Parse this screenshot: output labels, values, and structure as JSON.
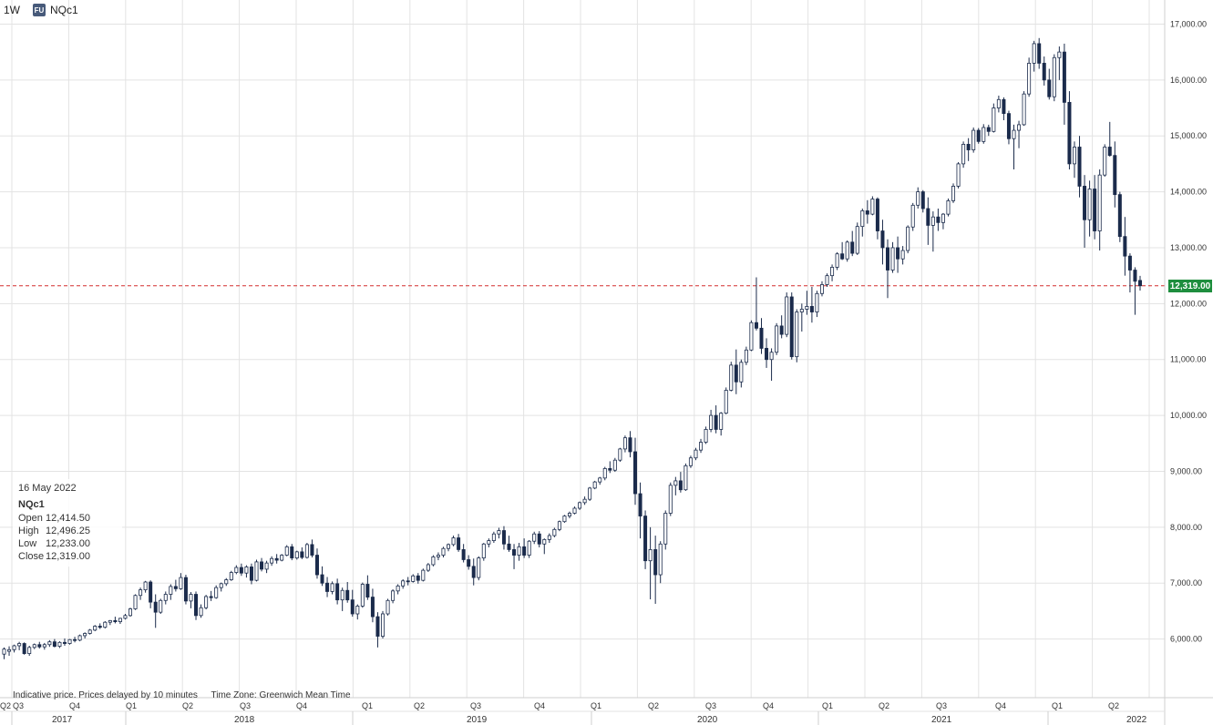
{
  "header": {
    "interval": "1W",
    "badge": "FU",
    "symbol": "NQc1"
  },
  "tooltip": {
    "date": "16 May 2022",
    "symbol": "NQc1",
    "open_label": "Open",
    "open": "12,414.50",
    "high_label": "High",
    "high": "12,496.25",
    "low_label": "Low",
    "low": "12,233.00",
    "close_label": "Close",
    "close": "12,319.00"
  },
  "footer": {
    "note": "Indicative price. Prices delayed by 10 minutes",
    "timezone": "Time Zone: Greenwich Mean Time"
  },
  "last_price_label": "12,319.00",
  "colors": {
    "up": "#ffffff",
    "down": "#1b2b4b",
    "wick": "#1b2b4b",
    "grid": "#e3e3e3",
    "last_line": "#d32f2f",
    "last_tag": "#1e8e3e"
  },
  "chart_data": {
    "type": "candlestick",
    "x_start": "2017-04-03",
    "interval": "1W",
    "last_price": 12319,
    "ylim": [
      5000,
      17300
    ],
    "y_ticks": [
      6000,
      7000,
      8000,
      9000,
      10000,
      11000,
      12000,
      13000,
      14000,
      15000,
      16000,
      17000
    ],
    "y_tick_labels": [
      "6,000.00",
      "7,000.00",
      "8,000.00",
      "9,000.00",
      "10,000.00",
      "11,000.00",
      "12,000.00",
      "13,000.00",
      "14,000.00",
      "15,000.00",
      "16,000.00",
      "17,000.00"
    ],
    "quarter_labels": [
      "Q2",
      "Q3",
      "Q4",
      "Q1",
      "Q2",
      "Q3",
      "Q4",
      "Q1",
      "Q2",
      "Q3",
      "Q4",
      "Q1",
      "Q2",
      "Q3",
      "Q4",
      "Q1",
      "Q2",
      "Q3",
      "Q4",
      "Q1",
      "Q2"
    ],
    "year_labels": [
      "2017",
      "2018",
      "2019",
      "2020",
      "2021",
      "2022"
    ],
    "candles": [
      [
        5730,
        5850,
        5640,
        5820
      ],
      [
        5780,
        5870,
        5700,
        5810
      ],
      [
        5810,
        5900,
        5760,
        5880
      ],
      [
        5880,
        5950,
        5800,
        5920
      ],
      [
        5920,
        5940,
        5720,
        5740
      ],
      [
        5740,
        5880,
        5700,
        5850
      ],
      [
        5850,
        5920,
        5820,
        5900
      ],
      [
        5900,
        5950,
        5830,
        5860
      ],
      [
        5860,
        5930,
        5810,
        5900
      ],
      [
        5900,
        5980,
        5860,
        5950
      ],
      [
        5950,
        6000,
        5850,
        5870
      ],
      [
        5870,
        5960,
        5840,
        5940
      ],
      [
        5940,
        6010,
        5880,
        5920
      ],
      [
        5920,
        6000,
        5900,
        5990
      ],
      [
        5990,
        6040,
        5940,
        5980
      ],
      [
        5980,
        6080,
        5960,
        6060
      ],
      [
        6060,
        6120,
        6010,
        6100
      ],
      [
        6100,
        6180,
        6080,
        6160
      ],
      [
        6160,
        6250,
        6140,
        6230
      ],
      [
        6230,
        6280,
        6180,
        6210
      ],
      [
        6210,
        6320,
        6190,
        6300
      ],
      [
        6300,
        6340,
        6250,
        6330
      ],
      [
        6330,
        6400,
        6280,
        6310
      ],
      [
        6310,
        6380,
        6270,
        6370
      ],
      [
        6370,
        6450,
        6350,
        6420
      ],
      [
        6420,
        6560,
        6400,
        6540
      ],
      [
        6540,
        6800,
        6520,
        6780
      ],
      [
        6780,
        6920,
        6700,
        6880
      ],
      [
        6880,
        7040,
        6830,
        7020
      ],
      [
        7020,
        7050,
        6550,
        6660
      ],
      [
        6660,
        6800,
        6200,
        6480
      ],
      [
        6480,
        6720,
        6450,
        6690
      ],
      [
        6690,
        6850,
        6620,
        6800
      ],
      [
        6800,
        6980,
        6700,
        6940
      ],
      [
        6940,
        7060,
        6850,
        6900
      ],
      [
        6900,
        7180,
        6880,
        7100
      ],
      [
        7100,
        7150,
        6620,
        6680
      ],
      [
        6680,
        6840,
        6550,
        6800
      ],
      [
        6800,
        6850,
        6340,
        6420
      ],
      [
        6420,
        6620,
        6380,
        6560
      ],
      [
        6560,
        6790,
        6530,
        6760
      ],
      [
        6760,
        6860,
        6680,
        6740
      ],
      [
        6740,
        6960,
        6720,
        6920
      ],
      [
        6920,
        7010,
        6850,
        6990
      ],
      [
        6990,
        7090,
        6950,
        7060
      ],
      [
        7060,
        7220,
        7040,
        7190
      ],
      [
        7190,
        7320,
        7160,
        7280
      ],
      [
        7280,
        7350,
        7130,
        7180
      ],
      [
        7180,
        7320,
        7100,
        7290
      ],
      [
        7290,
        7350,
        6980,
        7050
      ],
      [
        7050,
        7420,
        7030,
        7380
      ],
      [
        7380,
        7450,
        7210,
        7250
      ],
      [
        7250,
        7400,
        7180,
        7360
      ],
      [
        7360,
        7480,
        7310,
        7440
      ],
      [
        7440,
        7520,
        7350,
        7410
      ],
      [
        7410,
        7520,
        7390,
        7500
      ],
      [
        7500,
        7680,
        7480,
        7650
      ],
      [
        7650,
        7700,
        7410,
        7450
      ],
      [
        7450,
        7580,
        7420,
        7560
      ],
      [
        7560,
        7640,
        7430,
        7460
      ],
      [
        7460,
        7720,
        7440,
        7690
      ],
      [
        7690,
        7780,
        7460,
        7500
      ],
      [
        7500,
        7620,
        7080,
        7150
      ],
      [
        7150,
        7300,
        6950,
        7000
      ],
      [
        7000,
        7110,
        6750,
        6850
      ],
      [
        6850,
        7030,
        6800,
        6990
      ],
      [
        6990,
        7080,
        6620,
        6700
      ],
      [
        6700,
        6920,
        6500,
        6870
      ],
      [
        6870,
        7020,
        6650,
        6700
      ],
      [
        6700,
        6880,
        6400,
        6450
      ],
      [
        6450,
        6620,
        6350,
        6590
      ],
      [
        6590,
        7010,
        6560,
        6980
      ],
      [
        6980,
        7140,
        6700,
        6750
      ],
      [
        6750,
        6900,
        6300,
        6400
      ],
      [
        6400,
        6480,
        5850,
        6050
      ],
      [
        6050,
        6500,
        6010,
        6450
      ],
      [
        6450,
        6720,
        6420,
        6690
      ],
      [
        6690,
        6890,
        6640,
        6860
      ],
      [
        6860,
        6980,
        6800,
        6950
      ],
      [
        6950,
        7070,
        6900,
        7040
      ],
      [
        7040,
        7110,
        6960,
        7030
      ],
      [
        7030,
        7160,
        7010,
        7130
      ],
      [
        7130,
        7180,
        6990,
        7050
      ],
      [
        7050,
        7260,
        7030,
        7230
      ],
      [
        7230,
        7360,
        7200,
        7330
      ],
      [
        7330,
        7500,
        7300,
        7470
      ],
      [
        7470,
        7550,
        7410,
        7500
      ],
      [
        7500,
        7650,
        7460,
        7620
      ],
      [
        7620,
        7710,
        7570,
        7690
      ],
      [
        7690,
        7850,
        7660,
        7810
      ],
      [
        7810,
        7880,
        7560,
        7600
      ],
      [
        7600,
        7700,
        7370,
        7420
      ],
      [
        7420,
        7500,
        7240,
        7300
      ],
      [
        7300,
        7440,
        6960,
        7100
      ],
      [
        7100,
        7480,
        7050,
        7450
      ],
      [
        7450,
        7720,
        7400,
        7700
      ],
      [
        7700,
        7800,
        7640,
        7760
      ],
      [
        7760,
        7920,
        7720,
        7880
      ],
      [
        7880,
        7990,
        7800,
        7940
      ],
      [
        7940,
        8020,
        7600,
        7700
      ],
      [
        7700,
        7850,
        7560,
        7600
      ],
      [
        7600,
        7700,
        7250,
        7500
      ],
      [
        7500,
        7720,
        7400,
        7650
      ],
      [
        7650,
        7800,
        7450,
        7500
      ],
      [
        7500,
        7770,
        7450,
        7750
      ],
      [
        7750,
        7920,
        7700,
        7880
      ],
      [
        7880,
        7930,
        7640,
        7700
      ],
      [
        7700,
        7800,
        7520,
        7780
      ],
      [
        7780,
        7890,
        7720,
        7850
      ],
      [
        7850,
        7990,
        7820,
        7960
      ],
      [
        7960,
        8120,
        7930,
        8100
      ],
      [
        8100,
        8220,
        8080,
        8200
      ],
      [
        8200,
        8280,
        8160,
        8250
      ],
      [
        8250,
        8370,
        8230,
        8340
      ],
      [
        8340,
        8460,
        8310,
        8440
      ],
      [
        8440,
        8550,
        8400,
        8500
      ],
      [
        8500,
        8720,
        8470,
        8700
      ],
      [
        8700,
        8830,
        8680,
        8810
      ],
      [
        8810,
        8900,
        8760,
        8880
      ],
      [
        8880,
        9080,
        8840,
        9050
      ],
      [
        9050,
        9180,
        8970,
        9020
      ],
      [
        9020,
        9240,
        8990,
        9200
      ],
      [
        9200,
        9420,
        9170,
        9400
      ],
      [
        9400,
        9640,
        9340,
        9600
      ],
      [
        9600,
        9720,
        9250,
        9350
      ],
      [
        9350,
        9600,
        8400,
        8600
      ],
      [
        8600,
        8800,
        7800,
        8200
      ],
      [
        8200,
        8300,
        7250,
        7400
      ],
      [
        7400,
        8000,
        6710,
        7600
      ],
      [
        7600,
        7850,
        6630,
        7150
      ],
      [
        7150,
        7750,
        7000,
        7700
      ],
      [
        7700,
        8300,
        7600,
        8250
      ],
      [
        8250,
        8800,
        8200,
        8750
      ],
      [
        8750,
        8900,
        8570,
        8830
      ],
      [
        8830,
        8990,
        8620,
        8670
      ],
      [
        8670,
        9140,
        8650,
        9100
      ],
      [
        9100,
        9280,
        9060,
        9240
      ],
      [
        9240,
        9420,
        9200,
        9380
      ],
      [
        9380,
        9580,
        9330,
        9520
      ],
      [
        9520,
        9800,
        9490,
        9750
      ],
      [
        9750,
        10100,
        9700,
        10000
      ],
      [
        10000,
        10180,
        9680,
        9750
      ],
      [
        9750,
        10060,
        9640,
        10040
      ],
      [
        10040,
        10500,
        10020,
        10450
      ],
      [
        10450,
        10960,
        10430,
        10900
      ],
      [
        10900,
        11180,
        10380,
        10600
      ],
      [
        10600,
        11000,
        10500,
        10950
      ],
      [
        10950,
        11230,
        10900,
        11170
      ],
      [
        11170,
        11700,
        11150,
        11660
      ],
      [
        11660,
        12470,
        11520,
        11560
      ],
      [
        11560,
        11740,
        11100,
        11200
      ],
      [
        11200,
        11380,
        10850,
        11000
      ],
      [
        11000,
        11200,
        10620,
        11130
      ],
      [
        11130,
        11650,
        11080,
        11600
      ],
      [
        11600,
        11790,
        11380,
        11450
      ],
      [
        11450,
        12200,
        11400,
        12120
      ],
      [
        12120,
        12200,
        11000,
        11050
      ],
      [
        11050,
        11900,
        10950,
        11850
      ],
      [
        11850,
        12000,
        11500,
        11900
      ],
      [
        11900,
        12230,
        11800,
        11950
      ],
      [
        11950,
        12300,
        11660,
        11850
      ],
      [
        11850,
        12230,
        11760,
        12180
      ],
      [
        12180,
        12400,
        12130,
        12340
      ],
      [
        12340,
        12540,
        12300,
        12500
      ],
      [
        12500,
        12700,
        12400,
        12650
      ],
      [
        12650,
        12920,
        12600,
        12890
      ],
      [
        12890,
        13100,
        12780,
        12800
      ],
      [
        12800,
        13130,
        12750,
        13100
      ],
      [
        13100,
        13300,
        12850,
        12900
      ],
      [
        12900,
        13450,
        12870,
        13380
      ],
      [
        13380,
        13700,
        13200,
        13660
      ],
      [
        13660,
        13850,
        13430,
        13600
      ],
      [
        13600,
        13920,
        13580,
        13870
      ],
      [
        13870,
        13900,
        13150,
        13300
      ],
      [
        13300,
        13500,
        12700,
        13000
      ],
      [
        13000,
        13150,
        12100,
        12600
      ],
      [
        12600,
        13100,
        12550,
        13000
      ],
      [
        13000,
        13200,
        12550,
        12800
      ],
      [
        12800,
        13030,
        12700,
        12950
      ],
      [
        12950,
        13400,
        12900,
        13370
      ],
      [
        13370,
        13800,
        13300,
        13760
      ],
      [
        13760,
        14080,
        13700,
        14000
      ],
      [
        14000,
        14030,
        13630,
        13700
      ],
      [
        13700,
        13900,
        13050,
        13400
      ],
      [
        13400,
        13650,
        12930,
        13550
      ],
      [
        13550,
        13700,
        13300,
        13450
      ],
      [
        13450,
        13620,
        13330,
        13600
      ],
      [
        13600,
        13880,
        13560,
        13840
      ],
      [
        13840,
        14150,
        13800,
        14100
      ],
      [
        14100,
        14530,
        14060,
        14500
      ],
      [
        14500,
        14900,
        14430,
        14850
      ],
      [
        14850,
        14960,
        14550,
        14750
      ],
      [
        14750,
        15150,
        14700,
        15100
      ],
      [
        15100,
        15140,
        14860,
        14900
      ],
      [
        14900,
        15210,
        14860,
        15150
      ],
      [
        15150,
        15200,
        15000,
        15080
      ],
      [
        15080,
        15580,
        15060,
        15500
      ],
      [
        15500,
        15720,
        15420,
        15650
      ],
      [
        15650,
        15690,
        15280,
        15400
      ],
      [
        15400,
        15450,
        14850,
        14950
      ],
      [
        14950,
        15200,
        14400,
        15100
      ],
      [
        15100,
        15270,
        14780,
        15200
      ],
      [
        15200,
        15800,
        15180,
        15750
      ],
      [
        15750,
        16400,
        15700,
        16300
      ],
      [
        16300,
        16700,
        16150,
        16650
      ],
      [
        16650,
        16750,
        16200,
        16300
      ],
      [
        16300,
        16420,
        15900,
        16000
      ],
      [
        16000,
        16200,
        15650,
        15700
      ],
      [
        15700,
        16460,
        15620,
        16400
      ],
      [
        16400,
        16600,
        16000,
        16500
      ],
      [
        16500,
        16650,
        15200,
        15600
      ],
      [
        15600,
        15800,
        14400,
        14500
      ],
      [
        14500,
        14900,
        14250,
        14800
      ],
      [
        14800,
        15000,
        13900,
        14100
      ],
      [
        14100,
        14300,
        13000,
        13500
      ],
      [
        13500,
        14200,
        13200,
        14050
      ],
      [
        14050,
        14300,
        13150,
        13300
      ],
      [
        13300,
        14400,
        12950,
        14300
      ],
      [
        14300,
        14850,
        14270,
        14800
      ],
      [
        14800,
        15250,
        14630,
        14650
      ],
      [
        14650,
        14900,
        13720,
        13950
      ],
      [
        13950,
        14000,
        13100,
        13200
      ],
      [
        13200,
        13550,
        12500,
        12850
      ],
      [
        12850,
        12900,
        12200,
        12600
      ],
      [
        12600,
        12650,
        11800,
        12400
      ],
      [
        12414.5,
        12496.25,
        12233,
        12319
      ]
    ]
  }
}
